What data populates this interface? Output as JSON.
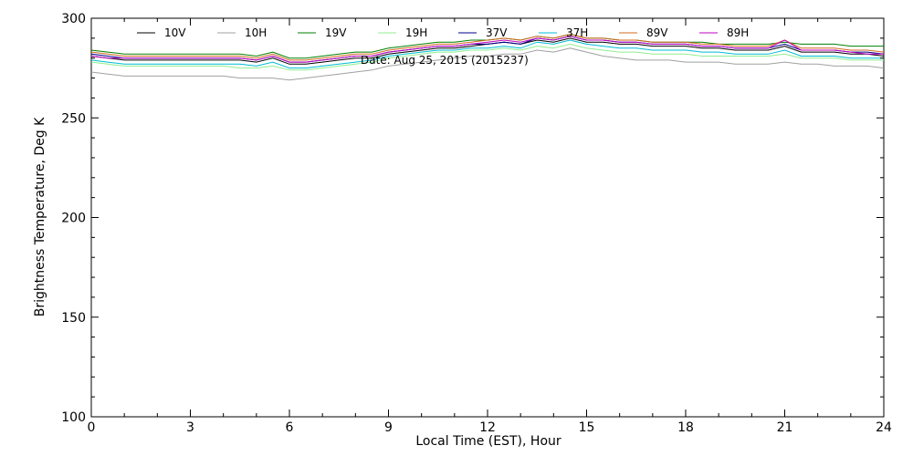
{
  "chart_data": {
    "type": "line",
    "title": "",
    "annotation": "Date: Aug 25, 2015 (2015237)",
    "xlabel": "Local Time (EST), Hour",
    "ylabel": "Brightness Temperature, Deg K",
    "xlim": [
      0,
      24
    ],
    "ylim": [
      100,
      300
    ],
    "xticks": [
      0,
      3,
      6,
      9,
      12,
      15,
      18,
      21,
      24
    ],
    "yticks": [
      100,
      150,
      200,
      250,
      300
    ],
    "x_minor_step": 1,
    "y_minor_step": 10,
    "grid": false,
    "legend_position": "top",
    "x": [
      0,
      0.5,
      1,
      1.5,
      2,
      2.5,
      3,
      3.5,
      4,
      4.5,
      5,
      5.5,
      6,
      6.5,
      7,
      7.5,
      8,
      8.5,
      9,
      9.5,
      10,
      10.5,
      11,
      11.5,
      12,
      12.5,
      13,
      13.5,
      14,
      14.5,
      15,
      15.5,
      16,
      16.5,
      17,
      17.5,
      18,
      18.5,
      19,
      19.5,
      20,
      20.5,
      21,
      21.5,
      22,
      22.5,
      23,
      23.5,
      24
    ],
    "series": [
      {
        "name": "10V",
        "color": "#000000",
        "values": [
          281,
          280,
          279,
          279,
          279,
          279,
          279,
          279,
          279,
          279,
          278,
          280,
          277,
          277,
          278,
          279,
          280,
          280,
          282,
          283,
          284,
          285,
          285,
          286,
          287,
          288,
          287,
          289,
          288,
          290,
          288,
          288,
          287,
          287,
          286,
          286,
          286,
          285,
          285,
          284,
          284,
          284,
          286,
          283,
          283,
          283,
          282,
          282,
          281
        ]
      },
      {
        "name": "10H",
        "color": "#a0a0a0",
        "values": [
          273,
          272,
          271,
          271,
          271,
          271,
          271,
          271,
          271,
          270,
          270,
          270,
          269,
          270,
          271,
          272,
          273,
          274,
          276,
          277,
          278,
          279,
          280,
          281,
          281,
          282,
          282,
          284,
          283,
          285,
          283,
          281,
          280,
          279,
          279,
          279,
          278,
          278,
          278,
          277,
          277,
          277,
          278,
          277,
          277,
          276,
          276,
          276,
          275
        ]
      },
      {
        "name": "19V",
        "color": "#008000",
        "values": [
          284,
          283,
          282,
          282,
          282,
          282,
          282,
          282,
          282,
          282,
          281,
          283,
          280,
          280,
          281,
          282,
          283,
          283,
          285,
          286,
          287,
          288,
          288,
          289,
          289,
          290,
          289,
          291,
          290,
          292,
          290,
          290,
          289,
          289,
          288,
          288,
          288,
          288,
          287,
          287,
          287,
          287,
          288,
          287,
          287,
          287,
          286,
          286,
          286
        ]
      },
      {
        "name": "19H",
        "color": "#90ee90",
        "values": [
          278,
          277,
          276,
          276,
          276,
          276,
          276,
          276,
          276,
          275,
          275,
          276,
          274,
          274,
          275,
          276,
          277,
          278,
          280,
          281,
          282,
          283,
          283,
          284,
          284,
          285,
          284,
          286,
          285,
          287,
          285,
          284,
          283,
          283,
          282,
          282,
          282,
          281,
          281,
          281,
          281,
          281,
          282,
          280,
          280,
          280,
          279,
          279,
          279
        ]
      },
      {
        "name": "37V",
        "color": "#00008b",
        "values": [
          282,
          281,
          280,
          280,
          280,
          280,
          280,
          280,
          280,
          280,
          279,
          281,
          278,
          278,
          279,
          280,
          281,
          281,
          283,
          284,
          285,
          286,
          286,
          287,
          287,
          288,
          287,
          290,
          289,
          291,
          289,
          289,
          288,
          288,
          287,
          287,
          287,
          286,
          286,
          285,
          285,
          285,
          287,
          284,
          284,
          284,
          283,
          283,
          282
        ]
      },
      {
        "name": "37H",
        "color": "#00bcd4",
        "values": [
          279,
          278,
          277,
          277,
          277,
          277,
          277,
          277,
          277,
          277,
          276,
          278,
          275,
          275,
          276,
          277,
          278,
          279,
          281,
          282,
          283,
          284,
          284,
          285,
          285,
          286,
          285,
          288,
          287,
          289,
          287,
          286,
          285,
          285,
          284,
          284,
          284,
          283,
          283,
          282,
          282,
          282,
          284,
          281,
          281,
          281,
          280,
          280,
          280
        ]
      },
      {
        "name": "89V",
        "color": "#d2691e",
        "values": [
          283,
          282,
          281,
          281,
          281,
          281,
          281,
          281,
          281,
          281,
          280,
          282,
          279,
          279,
          280,
          281,
          282,
          282,
          284,
          285,
          286,
          287,
          287,
          288,
          289,
          290,
          289,
          291,
          290,
          292,
          290,
          290,
          289,
          289,
          288,
          288,
          288,
          287,
          287,
          286,
          286,
          286,
          289,
          285,
          285,
          285,
          284,
          284,
          283
        ]
      },
      {
        "name": "89H",
        "color": "#c000c0",
        "values": [
          281,
          280,
          280,
          280,
          280,
          280,
          280,
          280,
          280,
          280,
          279,
          281,
          278,
          278,
          279,
          280,
          281,
          281,
          283,
          284,
          285,
          286,
          286,
          287,
          288,
          289,
          288,
          290,
          289,
          291,
          289,
          289,
          288,
          288,
          287,
          287,
          287,
          286,
          286,
          285,
          285,
          285,
          289,
          284,
          284,
          284,
          283,
          282,
          282
        ]
      }
    ]
  }
}
